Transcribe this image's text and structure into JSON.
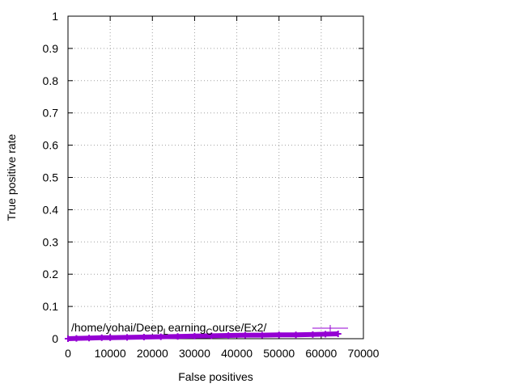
{
  "chart_data": {
    "type": "line",
    "title": "",
    "xlabel": "False positives",
    "ylabel": "True positive rate",
    "xlim": [
      0,
      70000
    ],
    "ylim": [
      0,
      1
    ],
    "xticks": [
      0,
      10000,
      20000,
      30000,
      40000,
      50000,
      60000,
      70000
    ],
    "xtick_labels": [
      "0",
      "10000",
      "20000",
      "30000",
      "40000",
      "50000",
      "60000",
      "70000"
    ],
    "yticks": [
      0,
      0.1,
      0.2,
      0.3,
      0.4,
      0.5,
      0.6,
      0.7,
      0.8,
      0.9,
      1
    ],
    "ytick_labels": [
      "0",
      "0.1",
      "0.2",
      "0.3",
      "0.4",
      "0.5",
      "0.6",
      "0.7",
      "0.8",
      "0.9",
      "1"
    ],
    "grid": true,
    "legend_position": "bottom-right",
    "series": [
      {
        "name": "/home/yohai/Deep_Learning_Course/Ex2/",
        "legend_label_parts": [
          "/home/yohai/Deep",
          "L",
          "earning",
          "C",
          "ourse/Ex2/"
        ],
        "color": "#9400d3",
        "marker": "plus",
        "x": [
          0,
          2000,
          5000,
          8000,
          10000,
          14000,
          18000,
          22000,
          26000,
          30000,
          34000,
          38000,
          42000,
          46000,
          50000,
          54000,
          58000,
          61000,
          64000
        ],
        "y": [
          0.0,
          0.001,
          0.002,
          0.003,
          0.003,
          0.004,
          0.005,
          0.006,
          0.007,
          0.008,
          0.009,
          0.01,
          0.011,
          0.011,
          0.012,
          0.012,
          0.013,
          0.014,
          0.015
        ]
      }
    ]
  }
}
